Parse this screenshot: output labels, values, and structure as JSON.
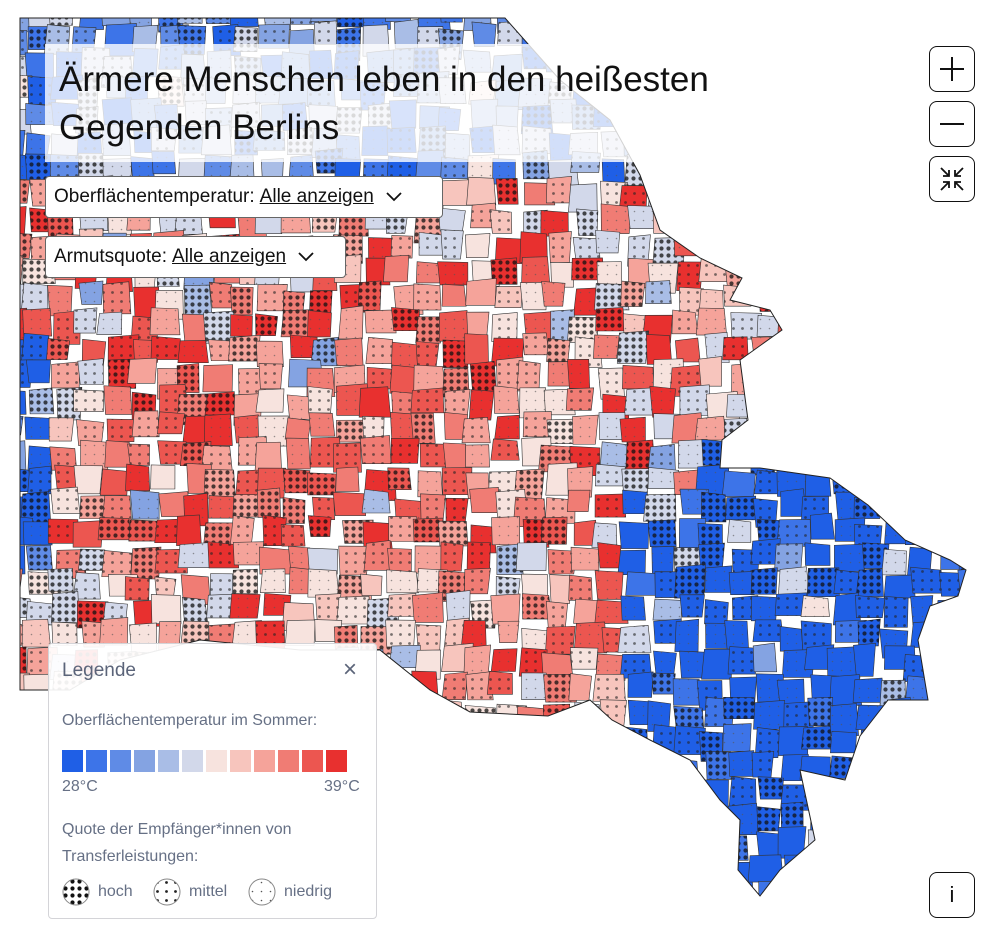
{
  "title": "Ärmere Menschen leben in den heißesten Gegenden Berlins",
  "filters": [
    {
      "label": "Oberflächentemperatur:",
      "value": "Alle anzeigen"
    },
    {
      "label": "Armutsquote:",
      "value": "Alle anzeigen"
    }
  ],
  "controls": {
    "zoom_in": "+",
    "zoom_out": "−",
    "info": "i"
  },
  "legend": {
    "title": "Legende",
    "close": "×",
    "temp_label": "Oberflächentemperatur im Sommer:",
    "temp_min": "28°C",
    "temp_max": "39°C",
    "temp_colors": [
      "#1f5fe6",
      "#3d74e8",
      "#5f8be6",
      "#84a3e2",
      "#a9bde6",
      "#d2d8ea",
      "#f7e3de",
      "#f7c5bd",
      "#f5a39a",
      "#f07c74",
      "#ec5650",
      "#e8302f"
    ],
    "poverty_label": "Quote der Empfänger*innen von Transferleistungen:",
    "poverty_levels": [
      "hoch",
      "mittel",
      "niedrig"
    ]
  },
  "colors": {
    "cold": "#1f5fe6",
    "hot": "#e8302f"
  }
}
